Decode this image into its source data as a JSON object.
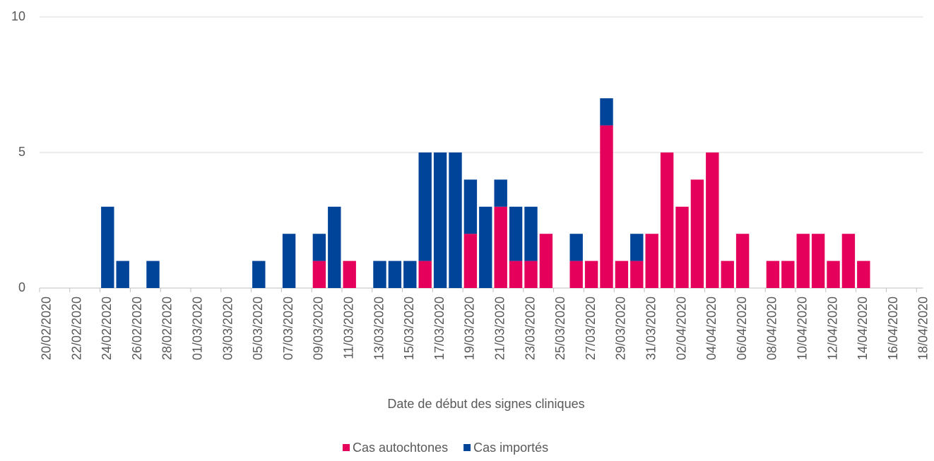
{
  "chart_data": {
    "type": "stacked_bar",
    "x_label": "Date de début des signes cliniques",
    "categories": [
      "20/02/2020",
      null,
      "22/02/2020",
      null,
      "24/02/2020",
      null,
      "26/02/2020",
      null,
      "28/02/2020",
      null,
      "01/03/2020",
      null,
      "03/03/2020",
      null,
      "05/03/2020",
      null,
      "07/03/2020",
      null,
      "09/03/2020",
      null,
      "11/03/2020",
      null,
      "13/03/2020",
      null,
      "15/03/2020",
      null,
      "17/03/2020",
      null,
      "19/03/2020",
      null,
      "21/03/2020",
      null,
      "23/03/2020",
      null,
      "25/03/2020",
      null,
      "27/03/2020",
      null,
      "29/03/2020",
      null,
      "31/03/2020",
      null,
      "02/04/2020",
      null,
      "04/04/2020",
      null,
      "06/04/2020",
      null,
      "08/04/2020",
      null,
      "10/04/2020",
      null,
      "12/04/2020",
      null,
      "14/04/2020",
      null,
      "16/04/2020",
      null,
      "18/04/2020"
    ],
    "series": [
      {
        "name": "Cas autochtones",
        "color": "#e5005b",
        "values": [
          0,
          0,
          0,
          0,
          0,
          0,
          0,
          0,
          0,
          0,
          0,
          0,
          0,
          0,
          0,
          0,
          0,
          0,
          1,
          0,
          1,
          0,
          0,
          0,
          0,
          1,
          0,
          0,
          2,
          0,
          3,
          1,
          1,
          2,
          0,
          1,
          1,
          6,
          1,
          1,
          2,
          5,
          3,
          4,
          5,
          1,
          2,
          0,
          1,
          1,
          2,
          2,
          1,
          2,
          1,
          0,
          0,
          0,
          0
        ]
      },
      {
        "name": "Cas importés",
        "color": "#00449a",
        "values": [
          0,
          0,
          0,
          0,
          3,
          1,
          0,
          1,
          0,
          0,
          0,
          0,
          0,
          0,
          1,
          0,
          2,
          0,
          1,
          3,
          0,
          0,
          1,
          1,
          1,
          4,
          5,
          5,
          2,
          3,
          1,
          2,
          2,
          0,
          0,
          1,
          0,
          1,
          0,
          1,
          0,
          0,
          0,
          0,
          0,
          0,
          0,
          0,
          0,
          0,
          0,
          0,
          0,
          0,
          0,
          0,
          0,
          0,
          0
        ]
      }
    ],
    "ylim": [
      0,
      10
    ],
    "yticks": [
      0,
      5,
      10
    ],
    "grid": true,
    "legend": "bottom"
  }
}
